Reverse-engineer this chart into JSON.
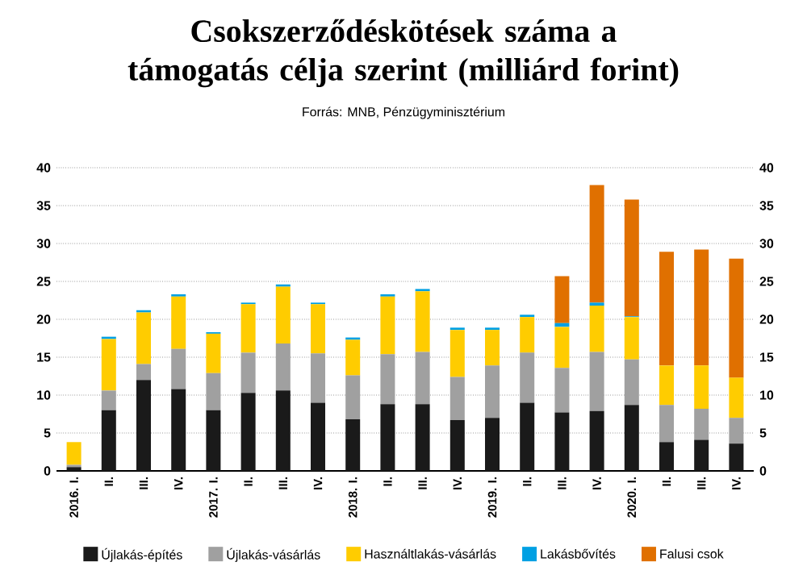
{
  "chart_data": {
    "type": "bar",
    "title": "Csokszerződéskötések száma a támogatás célja szerint (milliárd forint)",
    "subtitle": "Forrás: MNB, Pénzügyminisztérium",
    "categories": [
      "2016. I.",
      "II.",
      "III.",
      "IV.",
      "2017. I.",
      "II.",
      "III.",
      "IV.",
      "2018. I.",
      "II.",
      "III.",
      "IV.",
      "2019. I.",
      "II.",
      "III.",
      "IV.",
      "2020. I.",
      "II.",
      "III.",
      "IV."
    ],
    "stacked": true,
    "series": [
      {
        "name": "Újlakás-építés",
        "color": "#1a1a1a",
        "values": [
          0.5,
          8.0,
          12.0,
          10.8,
          8.0,
          10.3,
          10.6,
          9.0,
          6.8,
          8.8,
          8.8,
          6.7,
          7.0,
          9.0,
          7.7,
          7.9,
          8.7,
          3.8,
          4.1,
          3.6
        ]
      },
      {
        "name": "Újlakás-vásárlás",
        "color": "#a0a0a0",
        "values": [
          0.3,
          2.6,
          2.1,
          5.3,
          4.9,
          5.3,
          6.2,
          6.5,
          5.8,
          6.6,
          6.9,
          5.7,
          6.9,
          6.6,
          5.9,
          7.8,
          6.0,
          4.9,
          4.1,
          3.4
        ]
      },
      {
        "name": "Használtlakás-vásárlás",
        "color": "#ffcc00",
        "values": [
          3.0,
          6.8,
          6.8,
          6.9,
          5.2,
          6.4,
          7.5,
          6.5,
          4.7,
          7.6,
          8.0,
          6.2,
          4.7,
          4.7,
          5.4,
          6.1,
          5.6,
          5.2,
          5.7,
          5.3
        ]
      },
      {
        "name": "Lakásbővítés",
        "color": "#00a0e3",
        "values": [
          null,
          0.3,
          0.3,
          0.3,
          0.2,
          0.2,
          0.3,
          0.2,
          0.3,
          0.3,
          0.3,
          0.3,
          0.3,
          0.3,
          0.5,
          0.4,
          0.1,
          null,
          null,
          null
        ]
      },
      {
        "name": "Falusi csok",
        "color": "#e07000",
        "values": [
          null,
          null,
          null,
          null,
          null,
          null,
          null,
          null,
          null,
          null,
          null,
          null,
          null,
          null,
          6.2,
          15.5,
          15.4,
          15.0,
          15.3,
          15.7
        ]
      }
    ],
    "ylim": [
      0,
      40
    ],
    "yticks": [
      0,
      5,
      10,
      15,
      20,
      25,
      30,
      35,
      40
    ],
    "y2lim": [
      0,
      40
    ],
    "y2ticks": [
      0,
      5,
      10,
      15,
      20,
      25,
      30,
      35,
      40
    ],
    "grid": "y",
    "legend": "bottom"
  }
}
